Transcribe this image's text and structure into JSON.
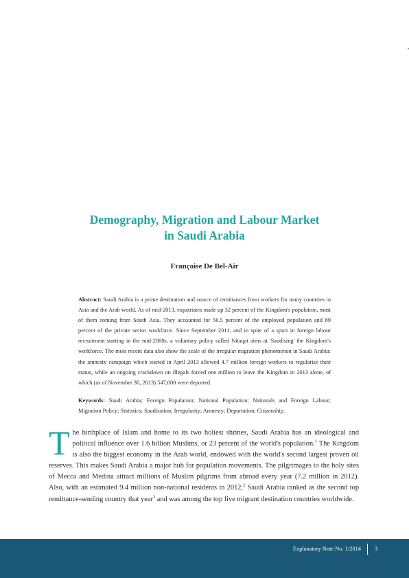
{
  "title": {
    "line1": "Demography, Migration and Labour Market",
    "line2": "in Saudi Arabia"
  },
  "author": "Françoise De Bel-Air",
  "abstract": {
    "label": "Abstract:",
    "text": "Saudi Arabia is a prime destination and source of remittances from workers for many countries in Asia and the Arab world. As of mid-2013, expatriates made up 32 percent of the Kingdom's population, most of them coming from South Asia. They accounted for 56.5 percent of the employed population and 89 percent of the private sector workforce. Since September 2011, and in spite of a spurt in foreign labour recruitment starting in the mid-2000s, a voluntary policy called Nitaqat aims at 'Saudising' the Kingdom's workforce. The most recent data also show the scale of the irregular migration phenomenon in Saudi Arabia: the amnesty campaign which started in April 2013 allowed 4.7 million foreign workers to regularise their status, while an ongoing crackdown on illegals forced one million to leave the Kingdom in 2013 alone, of which (as of November 30, 2013) 547,000 were deported."
  },
  "keywords": {
    "label": "Keywords:",
    "text": "Saudi Arabia; Foreign Population; National Population; Nationals and Foreign Labour; Migration Policy; Statistics; Saudisation; Irregularity; Amnesty; Deportation; Citizenship."
  },
  "body": {
    "dropcap": "T",
    "part1": "he birthplace of Islam and home to its two holiest shrines, Saudi Arabia has an ideological and political influence over 1.6 billion Muslims, or 23 percent of the world's population.",
    "note1": "1",
    "part2": " The Kingdom is also the biggest economy in the Arab world, endowed with the world's second largest proven oil reserves. This makes Saudi Arabia a major hub for population movements. The pilgrimages to the holy sites of Mecca and Medina attract millions of Muslim pilgrims from abroad every year (7.2 million in 2012). Also, with an estimated 9.4 million non-national residents in 2012,",
    "note2": "2",
    "part3": " Saudi Arabia ranked as the second top remittance-sending country that year",
    "note3": "3",
    "part4": " and was among the top five migrant destination countries worldwide."
  },
  "footer": {
    "label": "Explanatory Note No. 1/2014",
    "page": "3",
    "color": "#1b5877"
  },
  "accent_color": "#1ea6a0"
}
